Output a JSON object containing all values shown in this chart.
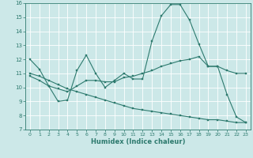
{
  "xlabel": "Humidex (Indice chaleur)",
  "xlim": [
    -0.5,
    23.5
  ],
  "ylim": [
    7,
    16
  ],
  "yticks": [
    7,
    8,
    9,
    10,
    11,
    12,
    13,
    14,
    15,
    16
  ],
  "xticks": [
    0,
    1,
    2,
    3,
    4,
    5,
    6,
    7,
    8,
    9,
    10,
    11,
    12,
    13,
    14,
    15,
    16,
    17,
    18,
    19,
    20,
    21,
    22,
    23
  ],
  "bg_color": "#cce8e8",
  "grid_color": "#ffffff",
  "line_color": "#2d7a6e",
  "line1_y": [
    12.0,
    11.3,
    10.1,
    9.0,
    9.1,
    11.2,
    12.3,
    11.0,
    10.0,
    10.5,
    11.0,
    10.6,
    10.6,
    13.3,
    15.1,
    15.9,
    15.9,
    14.8,
    13.1,
    11.5,
    11.5,
    9.5,
    7.9,
    7.5
  ],
  "line2_y": [
    10.8,
    10.5,
    10.1,
    9.9,
    9.7,
    10.1,
    10.5,
    10.5,
    10.4,
    10.4,
    10.7,
    10.8,
    11.0,
    11.2,
    11.5,
    11.7,
    11.9,
    12.0,
    12.2,
    11.5,
    11.5,
    11.2,
    11.0,
    11.0
  ],
  "line3_y": [
    11.0,
    10.8,
    10.5,
    10.2,
    9.9,
    9.7,
    9.5,
    9.3,
    9.1,
    8.9,
    8.7,
    8.5,
    8.4,
    8.3,
    8.2,
    8.1,
    8.0,
    7.9,
    7.8,
    7.7,
    7.7,
    7.6,
    7.5,
    7.5
  ]
}
